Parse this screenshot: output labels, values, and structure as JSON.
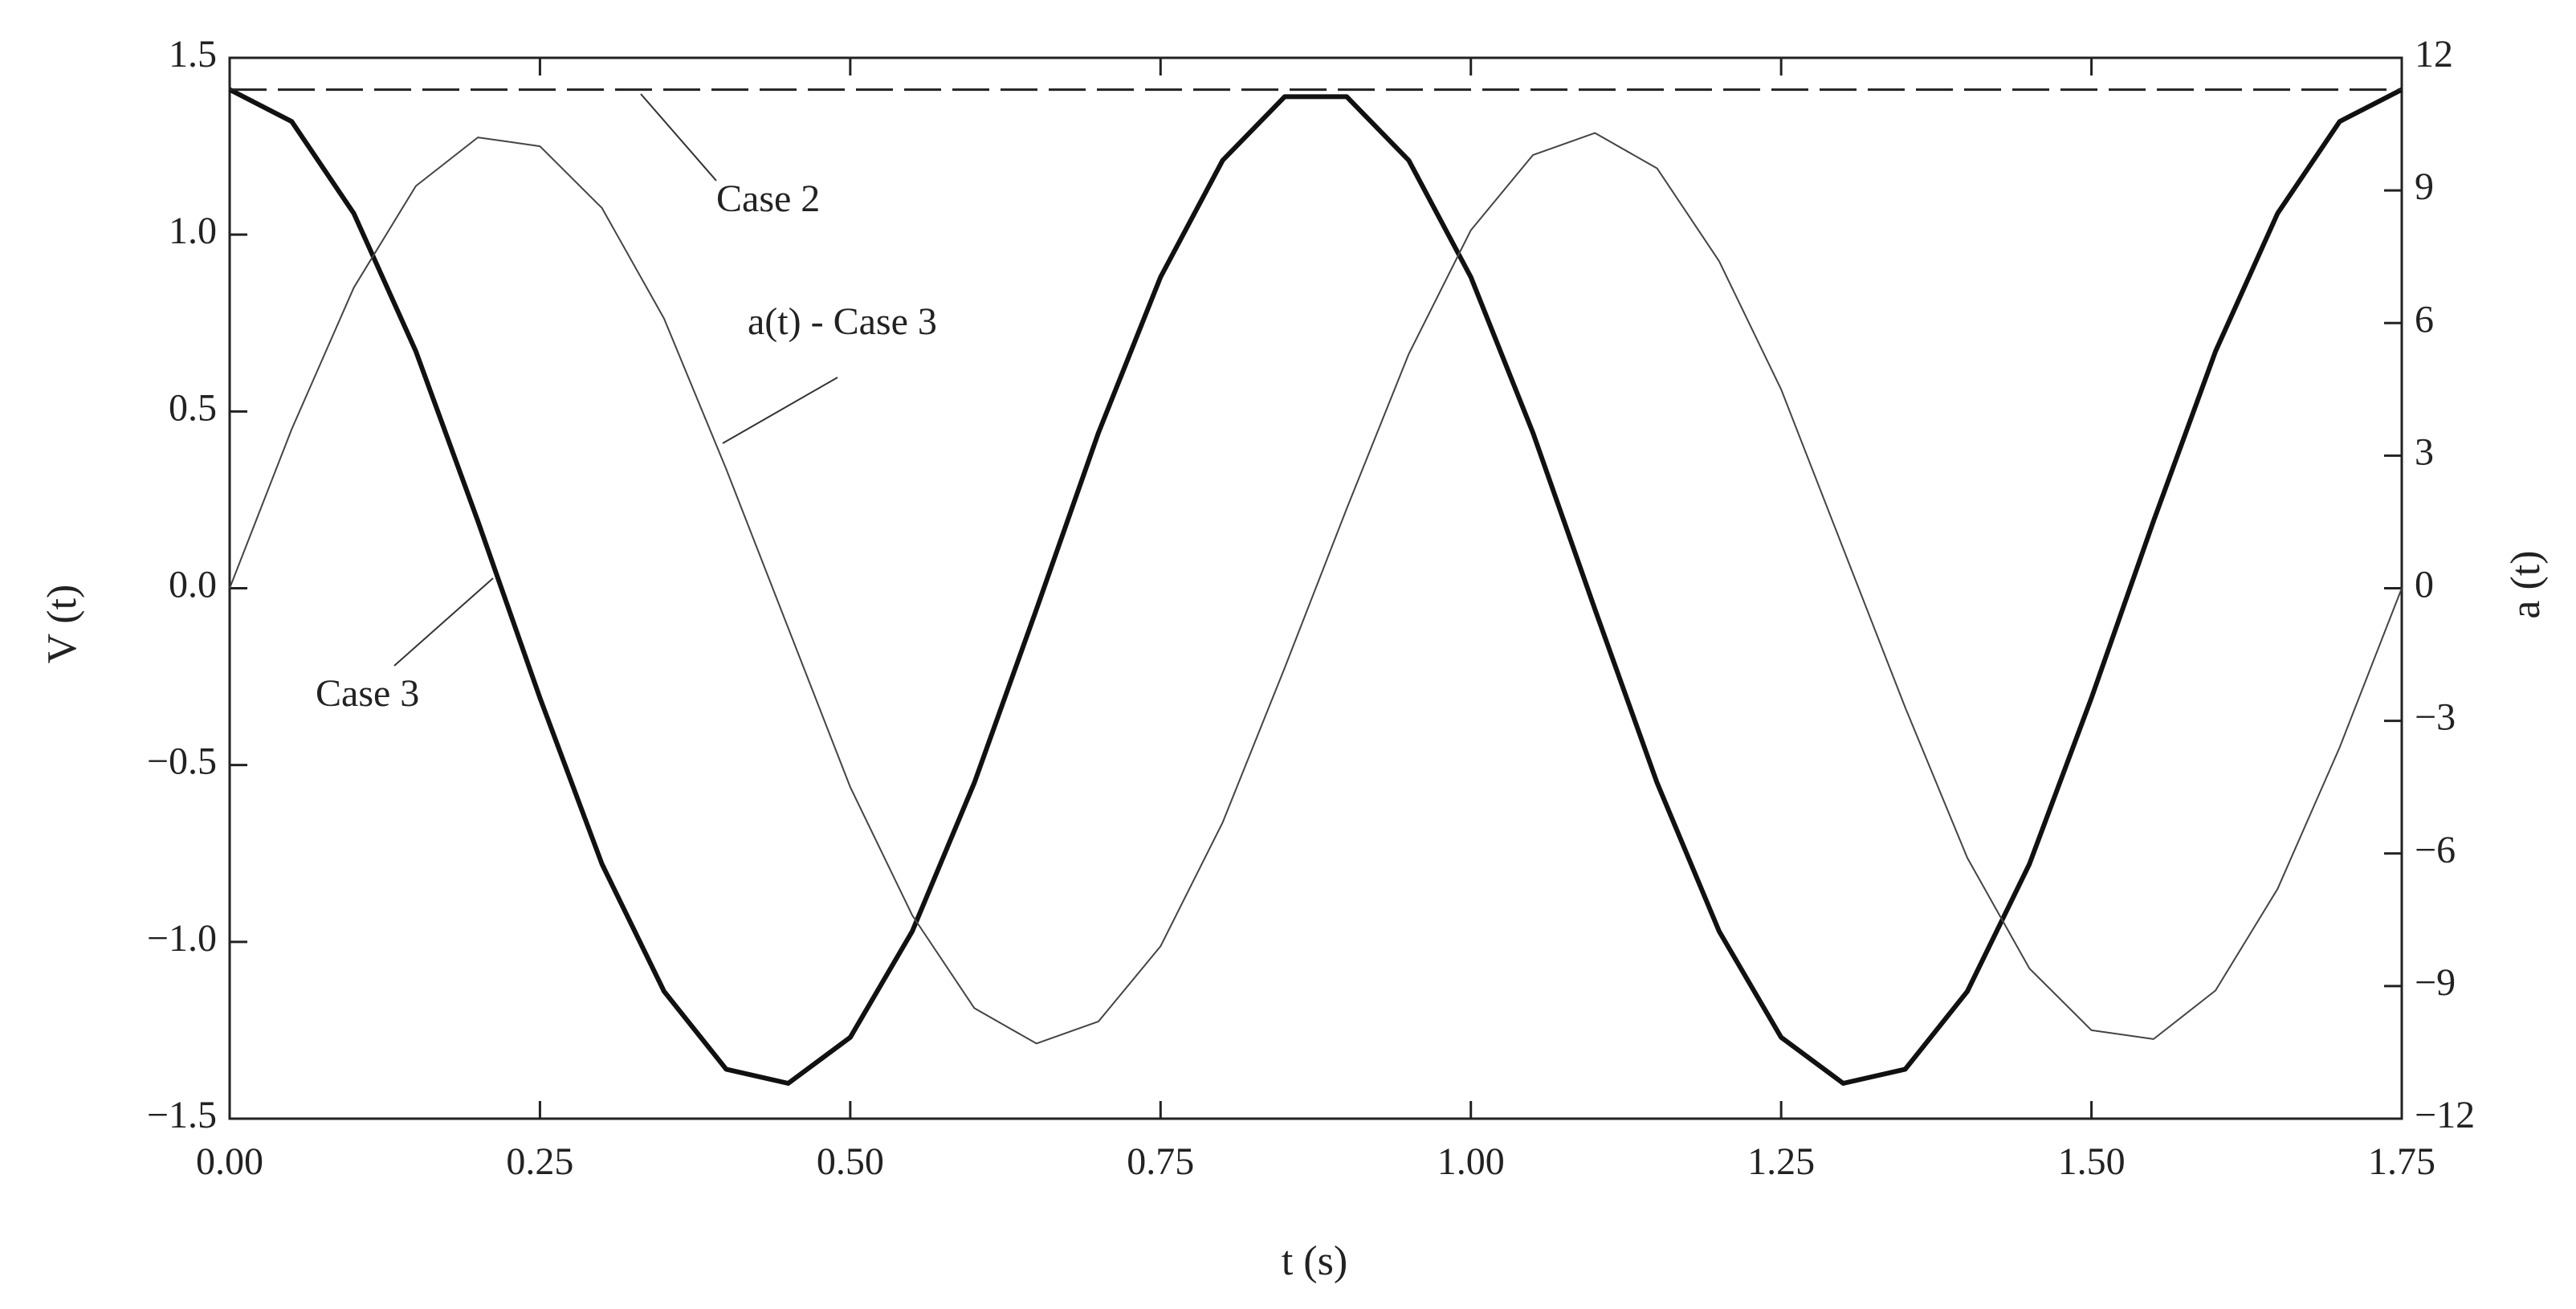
{
  "chart_data": {
    "type": "line",
    "x_label": "t (s)",
    "y_label": "V (t)",
    "y2_label": "a (t)",
    "x": [
      0,
      0.05,
      0.1,
      0.15,
      0.2,
      0.25,
      0.3,
      0.35,
      0.4,
      0.45,
      0.5,
      0.55,
      0.6,
      0.65,
      0.7,
      0.75,
      0.8,
      0.85,
      0.9,
      0.95,
      1.0,
      1.05,
      1.1,
      1.15,
      1.2,
      1.25,
      1.3,
      1.35,
      1.4,
      1.45,
      1.5,
      1.55,
      1.6,
      1.65,
      1.7,
      1.75
    ],
    "series": [
      {
        "name": "Case 3",
        "color": "#111111",
        "width": 6,
        "dash": false,
        "values": [
          1.41,
          1.32,
          1.06,
          0.67,
          0.19,
          -0.31,
          -0.78,
          -1.14,
          -1.36,
          -1.4,
          -1.27,
          -0.97,
          -0.55,
          -0.06,
          0.44,
          0.88,
          1.21,
          1.39,
          1.39,
          1.21,
          0.88,
          0.44,
          -0.06,
          -0.55,
          -0.97,
          -1.27,
          -1.4,
          -1.36,
          -1.14,
          -0.78,
          -0.31,
          0.19,
          0.67,
          1.06,
          1.32,
          1.41
        ]
      },
      {
        "name": "Case 2",
        "color": "#222222",
        "width": 3,
        "dash": true,
        "values": [
          1.41,
          1.41,
          1.41,
          1.41,
          1.41,
          1.41,
          1.41,
          1.41,
          1.41,
          1.41,
          1.41,
          1.41,
          1.41,
          1.41,
          1.41,
          1.41,
          1.41,
          1.41,
          1.41,
          1.41,
          1.41,
          1.41,
          1.41,
          1.41,
          1.41,
          1.41,
          1.41,
          1.41,
          1.41,
          1.41,
          1.41,
          1.41,
          1.41,
          1.41,
          1.41,
          1.41
        ]
      },
      {
        "name": "a(t) - Case 3",
        "color": "#444444",
        "width": 2,
        "dash": false,
        "axis": "y2",
        "values": [
          0,
          3.6,
          6.8,
          9.1,
          10.2,
          10.0,
          8.6,
          6.1,
          2.7,
          -0.9,
          -4.5,
          -7.4,
          -9.5,
          -10.3,
          -9.8,
          -8.1,
          -5.3,
          -1.8,
          1.8,
          5.3,
          8.1,
          9.8,
          10.3,
          9.5,
          7.4,
          4.5,
          0.9,
          -2.7,
          -6.1,
          -8.6,
          -10.0,
          -10.2,
          -9.1,
          -6.8,
          -3.6,
          0
        ]
      }
    ],
    "xlim": [
      0,
      1.75
    ],
    "xticks": [
      {
        "value": 0,
        "label": "0.00"
      },
      {
        "value": 0.25,
        "label": "0.25"
      },
      {
        "value": 0.5,
        "label": "0.50"
      },
      {
        "value": 0.75,
        "label": "0.75"
      },
      {
        "value": 1.0,
        "label": "1.00"
      },
      {
        "value": 1.25,
        "label": "1.25"
      },
      {
        "value": 1.5,
        "label": "1.50"
      },
      {
        "value": 1.75,
        "label": "1.75"
      }
    ],
    "ylim": [
      -1.5,
      1.5
    ],
    "yticks": [
      1.5,
      {
        "value": 1.0,
        "label": "1.0"
      },
      0.5,
      {
        "value": 0,
        "label": "0.0"
      },
      {
        "value": -0.5,
        "label": "−0.5"
      },
      {
        "value": -1.0,
        "label": "−1.0"
      },
      {
        "value": -1.5,
        "label": "−1.5"
      }
    ],
    "y2lim": [
      -12,
      12
    ],
    "y2ticks": [
      12,
      9,
      6,
      3,
      0,
      {
        "value": -3,
        "label": "−3"
      },
      {
        "value": -6,
        "label": "−6"
      },
      {
        "value": -9,
        "label": "−9"
      },
      {
        "value": -12,
        "label": "−12"
      }
    ],
    "grid": false
  }
}
